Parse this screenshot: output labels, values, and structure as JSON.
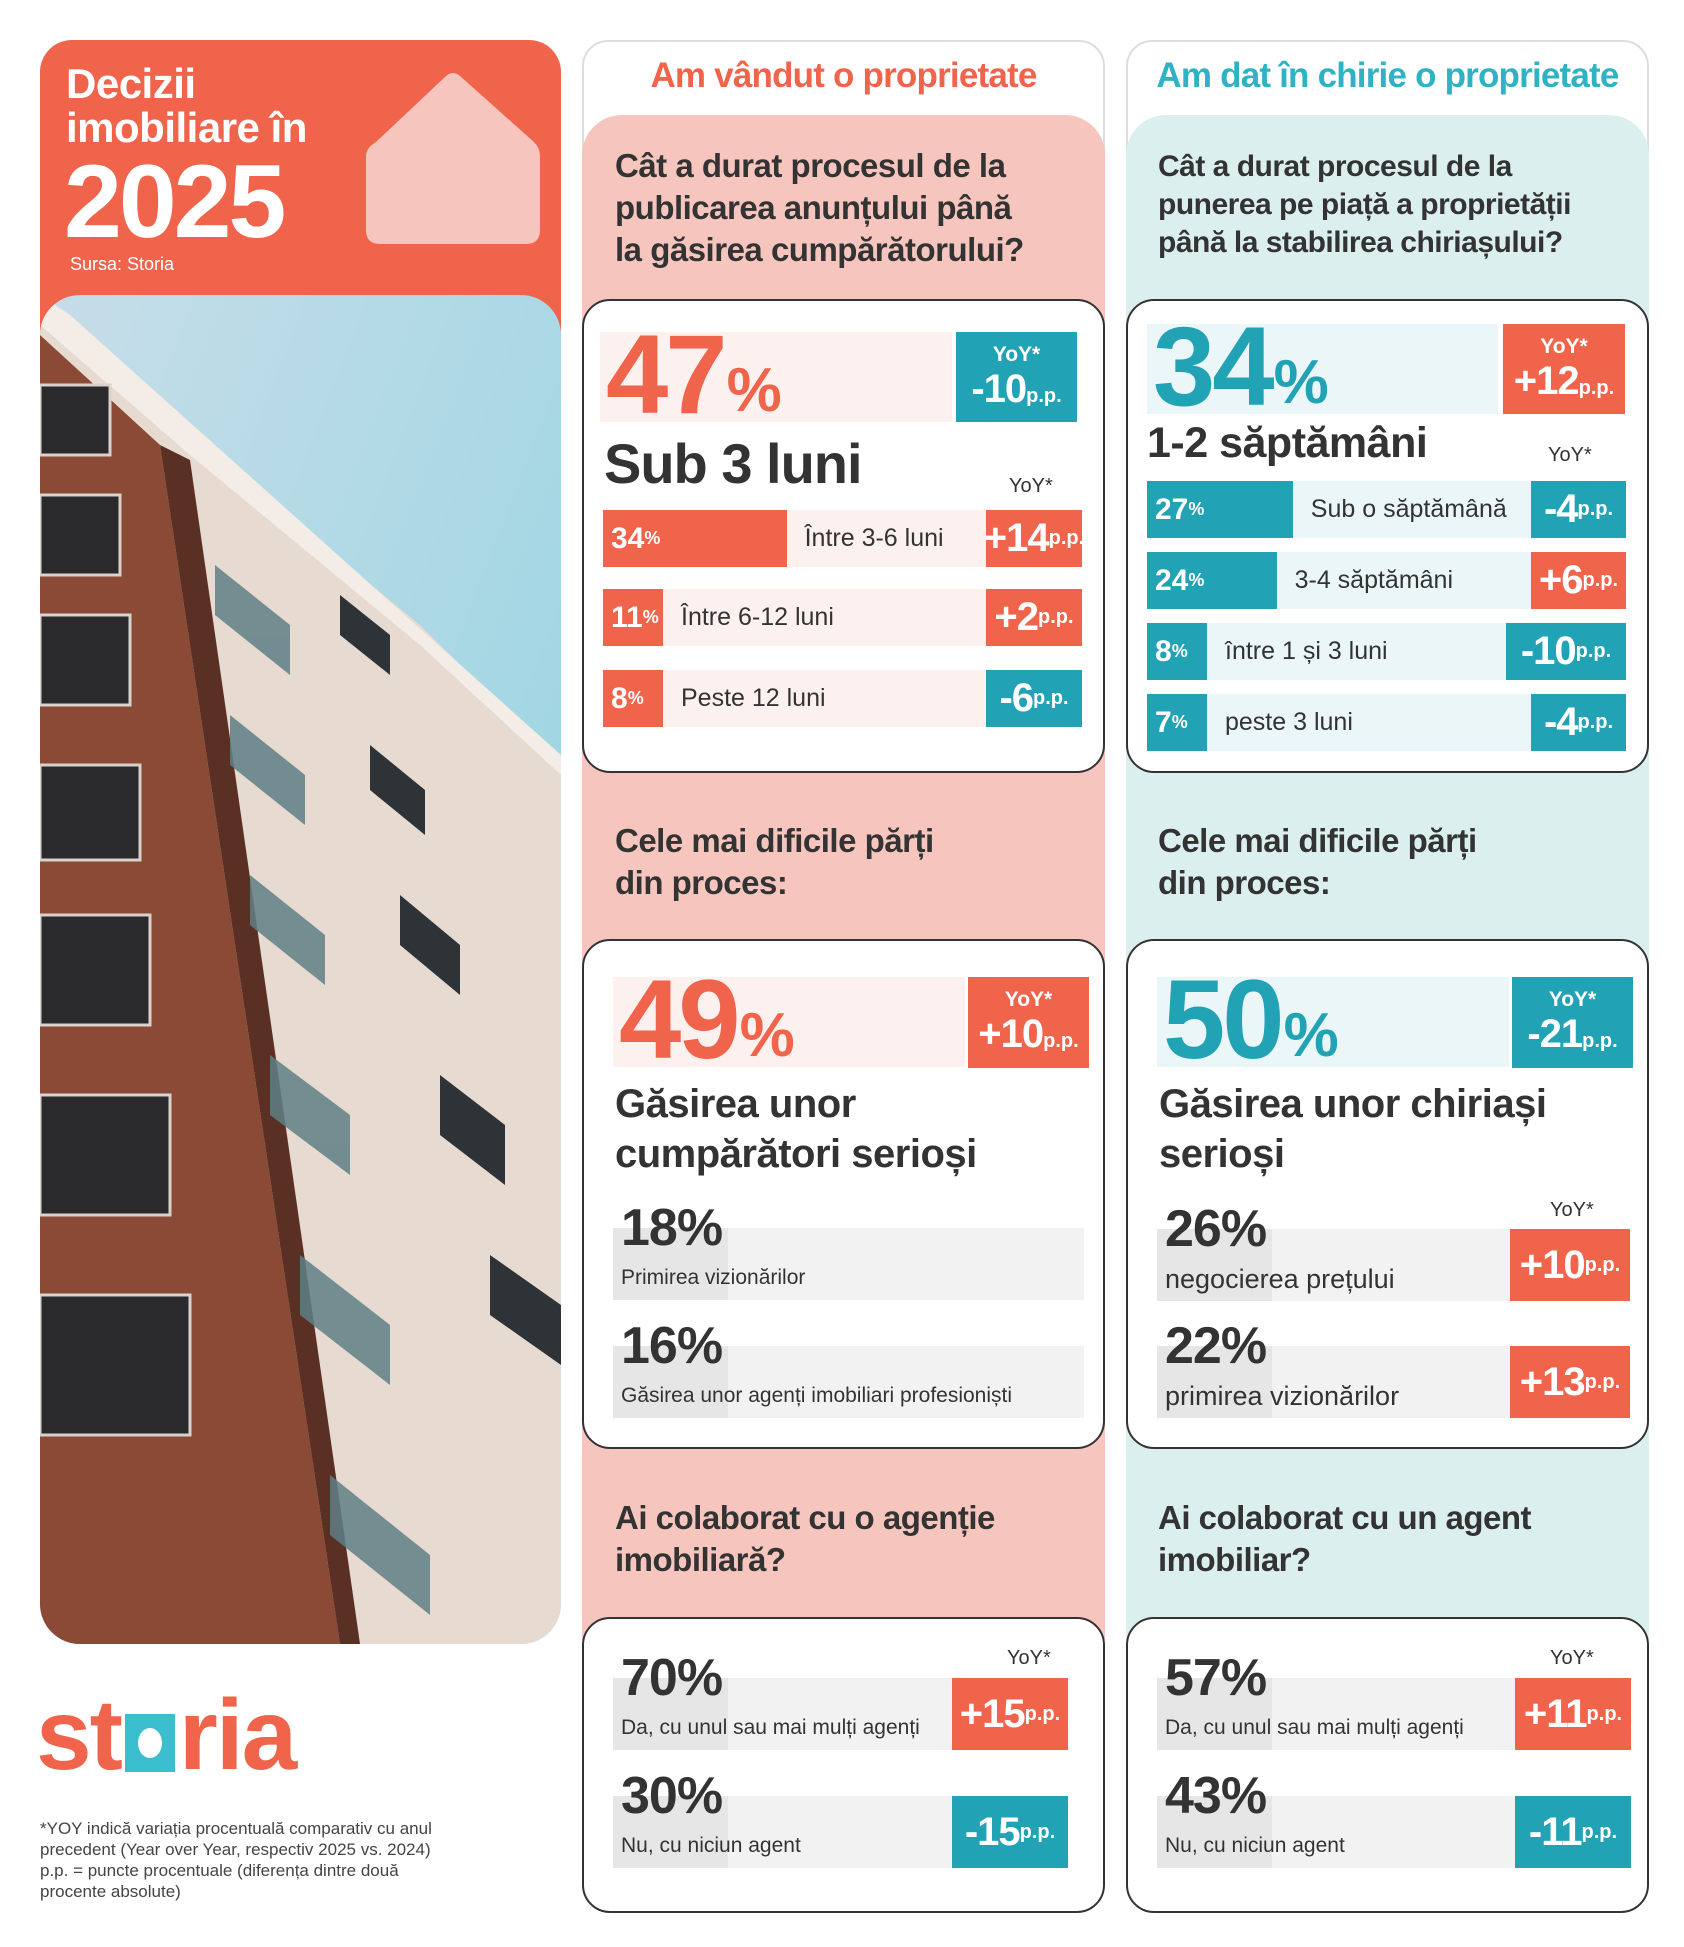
{
  "header": {
    "title_line1": "Decizii",
    "title_line2": "imobiliare în",
    "year": "2025",
    "source": "Sursa: Storia"
  },
  "logo": {
    "text_left": "st",
    "text_right": "ria",
    "full": "storia"
  },
  "footnote": [
    "*YOY indică variația procentuală comparativ cu anul",
    "precedent (Year over Year, respectiv 2025 vs. 2024)",
    "p.p. = puncte procentuale (diferența dintre două",
    "procente absolute)"
  ],
  "common": {
    "yoy_label": "YoY*",
    "pp": "p.p.",
    "pct": "%"
  },
  "colors": {
    "coral": "#f0644c",
    "teal": "#22a3b5",
    "pink_bg": "#f6c6be",
    "teal_bg": "#dcefef"
  },
  "sold": {
    "title": "Am vândut o proprietate",
    "q1": {
      "question": "Cât a durat procesul de la\npublicarea anunțului până\nla găsirea cumpărătorului?",
      "main": {
        "pct": "47",
        "label": "Sub 3 luni",
        "yoy": "-10"
      },
      "rows": [
        {
          "pct": "34",
          "label": "Între 3-6 luni",
          "yoy": "+14"
        },
        {
          "pct": "11",
          "label": "Între 6-12 luni",
          "yoy": "+2"
        },
        {
          "pct": "8",
          "label": "Peste 12 luni",
          "yoy": "-6"
        }
      ]
    },
    "q2": {
      "heading": "Cele mai dificile părți\ndin proces:",
      "main": {
        "pct": "49",
        "label": "Găsirea unor cumpărători serioși",
        "yoy": "+10"
      },
      "items": [
        {
          "pct": "18%",
          "label": "Primirea vizionărilor"
        },
        {
          "pct": "16%",
          "label": "Găsirea unor agenți imobiliari profesioniști"
        }
      ]
    },
    "q3": {
      "heading": "Ai colaborat cu o agenție\nimobiliară?",
      "items": [
        {
          "pct": "70%",
          "label": "Da, cu unul sau mai mulți agenți",
          "yoy": "+15"
        },
        {
          "pct": "30%",
          "label": "Nu, cu niciun agent",
          "yoy": "-15"
        }
      ]
    }
  },
  "rented": {
    "title": "Am dat în chirie o proprietate",
    "q1": {
      "question": "Cât a durat procesul de la\npunerea pe piață a proprietății\npână la stabilirea chiriașului?",
      "main": {
        "pct": "34",
        "label": "1-2 săptămâni",
        "yoy": "+12"
      },
      "rows": [
        {
          "pct": "27",
          "label": "Sub o săptămână",
          "yoy": "-4"
        },
        {
          "pct": "24",
          "label": "3-4 săptămâni",
          "yoy": "+6"
        },
        {
          "pct": "8",
          "label": "între 1 și 3 luni",
          "yoy": "-10"
        },
        {
          "pct": "7",
          "label": "peste 3 luni",
          "yoy": "-4"
        }
      ]
    },
    "q2": {
      "heading": "Cele mai dificile părți\ndin proces:",
      "main": {
        "pct": "50",
        "label": "Găsirea unor chiriași serioși",
        "yoy": "-21"
      },
      "items": [
        {
          "pct": "26%",
          "label": "negocierea prețului",
          "yoy": "+10"
        },
        {
          "pct": "22%",
          "label": "primirea vizionărilor",
          "yoy": "+13"
        }
      ]
    },
    "q3": {
      "heading": "Ai colaborat cu un agent\nimobiliar?",
      "items": [
        {
          "pct": "57%",
          "label": "Da, cu unul sau mai mulți agenți",
          "yoy": "+11"
        },
        {
          "pct": "43%",
          "label": "Nu, cu niciun agent",
          "yoy": "-11"
        }
      ]
    }
  }
}
